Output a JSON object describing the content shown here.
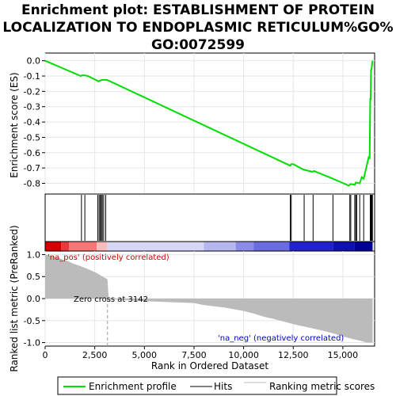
{
  "chart_data": {
    "type": "line",
    "title": "Enrichment plot: ESTABLISHMENT OF PROTEIN LOCALIZATION TO ENDOPLASMIC RETICULUM%GO%GO:0072599",
    "title_lines": [
      "Enrichment plot: ESTABLISHMENT OF PROTEIN",
      "LOCALIZATION TO ENDOPLASMIC RETICULUM%GO%",
      "GO:0072599"
    ],
    "xlabel": "Rank in Ordered Dataset",
    "xlim": [
      0,
      16600
    ],
    "x_ticks": [
      0,
      2500,
      5000,
      7500,
      10000,
      12500,
      15000
    ],
    "x_tick_labels": [
      "0",
      "2,500",
      "5,000",
      "7,500",
      "10,000",
      "12,500",
      "15,000"
    ],
    "es_panel": {
      "ylabel": "Enrichment score (ES)",
      "ylim": [
        -0.87,
        0.05
      ],
      "y_ticks": [
        0.0,
        -0.1,
        -0.2,
        -0.3,
        -0.4,
        -0.5,
        -0.6,
        -0.7,
        -0.8
      ],
      "y_tick_labels": [
        "0.0",
        "-0.1",
        "-0.2",
        "-0.3",
        "-0.4",
        "-0.5",
        "-0.6",
        "-0.7",
        "-0.8"
      ],
      "series": [
        {
          "name": "Enrichment profile",
          "color": "#00dd00",
          "x": [
            0,
            1800,
            1850,
            2000,
            2150,
            2700,
            2750,
            2800,
            2850,
            2900,
            3000,
            3100,
            3200,
            12350,
            12400,
            12500,
            13000,
            13450,
            13550,
            14500,
            15300,
            15400,
            15600,
            15650,
            15850,
            15950,
            16000,
            16050,
            16300,
            16350,
            16380,
            16400,
            16420,
            16450,
            16480,
            16500
          ],
          "y": [
            0.0,
            -0.1,
            -0.095,
            -0.095,
            -0.1,
            -0.135,
            -0.13,
            -0.13,
            -0.125,
            -0.125,
            -0.125,
            -0.125,
            -0.13,
            -0.685,
            -0.675,
            -0.675,
            -0.71,
            -0.725,
            -0.72,
            -0.77,
            -0.815,
            -0.805,
            -0.81,
            -0.795,
            -0.8,
            -0.76,
            -0.765,
            -0.77,
            -0.63,
            -0.635,
            -0.25,
            -0.25,
            -0.06,
            -0.055,
            -0.01,
            0.0
          ]
        }
      ]
    },
    "hits": [
      1830,
      2000,
      2650,
      2720,
      2780,
      2830,
      2880,
      2950,
      3050,
      12350,
      12400,
      13050,
      13500,
      14500,
      15350,
      15400,
      15600,
      15650,
      15700,
      15850,
      16050,
      16380,
      16400,
      16430,
      16460,
      16490
    ],
    "colorbar": [
      {
        "from": 0,
        "to": 800,
        "color": "#d40000"
      },
      {
        "from": 800,
        "to": 1200,
        "color": "#e83a3a"
      },
      {
        "from": 1200,
        "to": 2600,
        "color": "#f77777"
      },
      {
        "from": 2600,
        "to": 3142,
        "color": "#f9bcbc"
      },
      {
        "from": 3142,
        "to": 8000,
        "color": "#d6d6f7"
      },
      {
        "from": 8000,
        "to": 9600,
        "color": "#b7b7f0"
      },
      {
        "from": 9600,
        "to": 10500,
        "color": "#8b8bea"
      },
      {
        "from": 10500,
        "to": 12300,
        "color": "#6b6be2"
      },
      {
        "from": 12300,
        "to": 14500,
        "color": "#2222cc"
      },
      {
        "from": 14500,
        "to": 15600,
        "color": "#1010b0"
      },
      {
        "from": 15600,
        "to": 16500,
        "color": "#000090"
      }
    ],
    "metric_panel": {
      "ylabel": "Ranked list metric (PreRanked)",
      "ylim": [
        -1.08,
        1.08
      ],
      "y_ticks": [
        1.0,
        0.5,
        0.0,
        -0.5,
        -1.0
      ],
      "y_tick_labels": [
        "1.0",
        "0.5",
        "0.0",
        "-0.5",
        "-1.0"
      ],
      "x": [
        0,
        200,
        500,
        800,
        1100,
        1400,
        1700,
        2000,
        2300,
        2600,
        2900,
        3142,
        3200,
        5000,
        7500,
        8000,
        9000,
        10000,
        10500,
        11000,
        11500,
        12000,
        12500,
        13000,
        13500,
        14000,
        14500,
        15000,
        15500,
        16000,
        16200,
        16500
      ],
      "y": [
        1.0,
        0.98,
        0.95,
        0.9,
        0.86,
        0.8,
        0.75,
        0.7,
        0.64,
        0.58,
        0.5,
        0.44,
        -0.01,
        -0.06,
        -0.1,
        -0.15,
        -0.2,
        -0.28,
        -0.34,
        -0.41,
        -0.46,
        -0.52,
        -0.58,
        -0.63,
        -0.68,
        -0.73,
        -0.79,
        -0.86,
        -0.92,
        -0.97,
        -1.0,
        -1.0
      ],
      "zero_cross": 3142,
      "zero_cross_label": "Zero cross at 3142",
      "pos_label": "'na_pos' (positively correlated)",
      "neg_label": "'na_neg' (negatively correlated)"
    },
    "legend": {
      "placement": "bottom",
      "entries": [
        {
          "label": "Enrichment profile",
          "color": "#00dd00",
          "kind": "line"
        },
        {
          "label": "Hits",
          "color": "#000000",
          "kind": "line"
        },
        {
          "label": "Ranking metric scores",
          "color": "#bbbbbb",
          "kind": "line"
        }
      ]
    }
  }
}
